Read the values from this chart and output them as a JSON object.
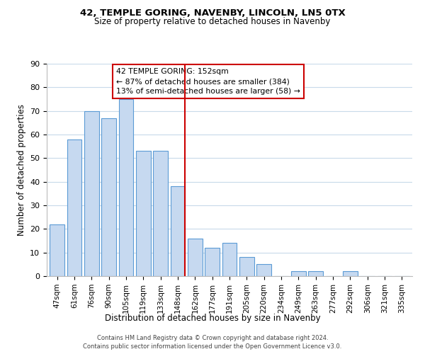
{
  "title": "42, TEMPLE GORING, NAVENBY, LINCOLN, LN5 0TX",
  "subtitle": "Size of property relative to detached houses in Navenby",
  "xlabel": "Distribution of detached houses by size in Navenby",
  "ylabel": "Number of detached properties",
  "bar_labels": [
    "47sqm",
    "61sqm",
    "76sqm",
    "90sqm",
    "105sqm",
    "119sqm",
    "133sqm",
    "148sqm",
    "162sqm",
    "177sqm",
    "191sqm",
    "205sqm",
    "220sqm",
    "234sqm",
    "249sqm",
    "263sqm",
    "277sqm",
    "292sqm",
    "306sqm",
    "321sqm",
    "335sqm"
  ],
  "bar_values": [
    22,
    58,
    70,
    67,
    75,
    53,
    53,
    38,
    16,
    12,
    14,
    8,
    5,
    0,
    2,
    2,
    0,
    2,
    0,
    0,
    0
  ],
  "bar_color": "#c6d9f0",
  "bar_edge_color": "#5b9bd5",
  "highlight_index": 7,
  "highlight_line_color": "#cc0000",
  "annotation_title": "42 TEMPLE GORING: 152sqm",
  "annotation_line1": "← 87% of detached houses are smaller (384)",
  "annotation_line2": "13% of semi-detached houses are larger (58) →",
  "annotation_box_color": "#ffffff",
  "annotation_box_edge": "#cc0000",
  "ylim": [
    0,
    90
  ],
  "yticks": [
    0,
    10,
    20,
    30,
    40,
    50,
    60,
    70,
    80,
    90
  ],
  "footer_line1": "Contains HM Land Registry data © Crown copyright and database right 2024.",
  "footer_line2": "Contains public sector information licensed under the Open Government Licence v3.0.",
  "background_color": "#ffffff",
  "grid_color": "#c8daea"
}
